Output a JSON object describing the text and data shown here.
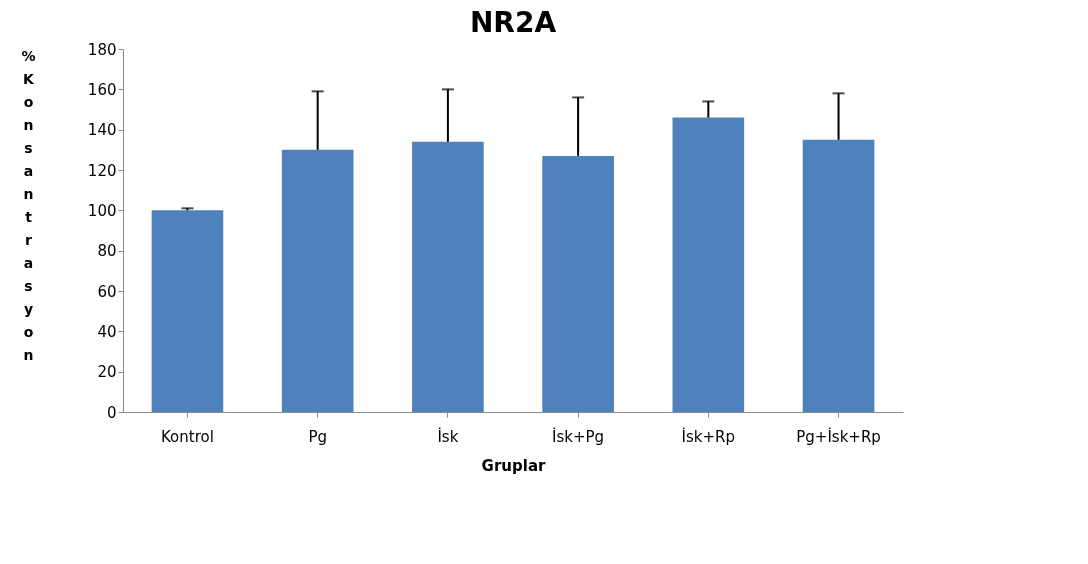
{
  "chart_data": {
    "type": "bar",
    "title": "NR2A",
    "xlabel": "Gruplar",
    "ylabel": "% Konsantrasyon",
    "categories": [
      "Kontrol",
      "Pg",
      "İsk",
      "İsk+Pg",
      "İsk+Rp",
      "Pg+İsk+Rp"
    ],
    "series": [
      {
        "color": "#4f81bd",
        "values": [
          100,
          130,
          134,
          127,
          146,
          135
        ],
        "errors": [
          [
            100,
            101
          ],
          [
            130,
            159
          ],
          [
            134,
            160
          ],
          [
            127,
            156
          ],
          [
            146,
            154
          ],
          [
            135,
            158
          ]
        ]
      }
    ],
    "ylim": [
      0,
      180
    ],
    "yticks": [
      0,
      20,
      40,
      60,
      80,
      100,
      120,
      140,
      160,
      180
    ],
    "grid": false
  }
}
